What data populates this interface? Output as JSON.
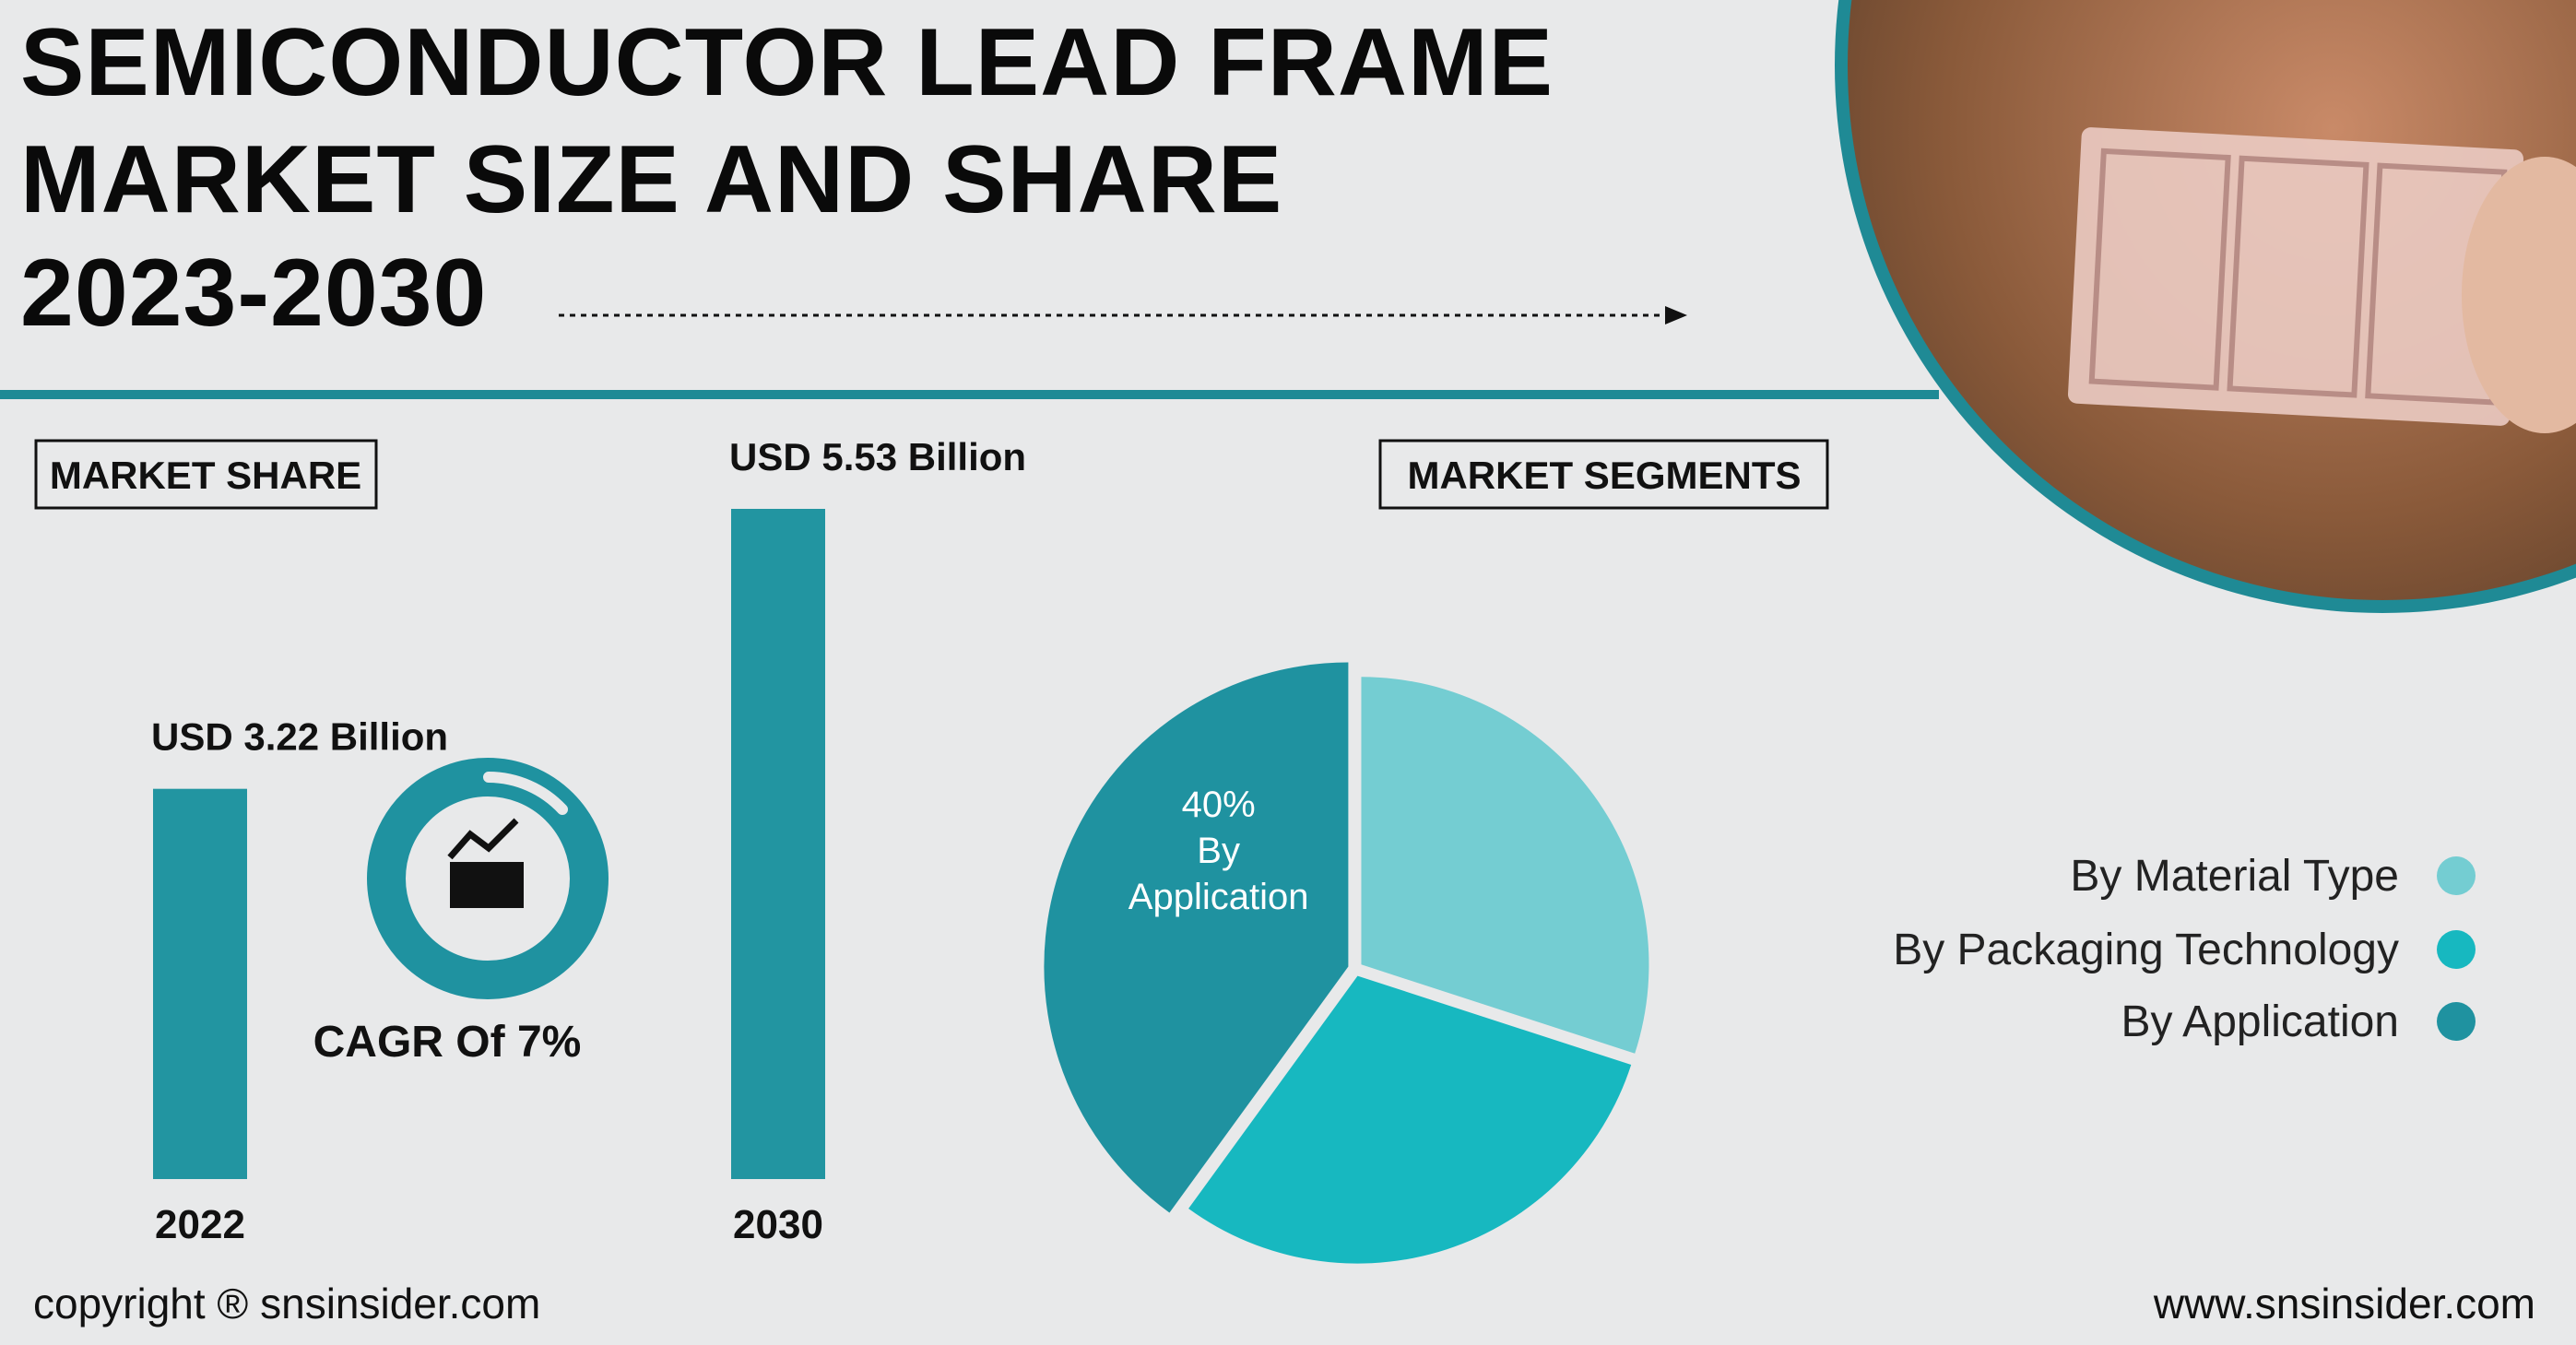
{
  "title_lines": [
    "SEMICONDUCTOR LEAD FRAME",
    "MARKET SIZE AND SHARE",
    "2023-2030"
  ],
  "badges": {
    "market_share": "MARKET SHARE",
    "market_segments": "MARKET SEGMENTS"
  },
  "cagr": "CAGR Of 7%",
  "chart_data": [
    {
      "type": "bar",
      "categories": [
        "2022",
        "2030"
      ],
      "values": [
        3.22,
        5.53
      ],
      "value_labels": [
        "USD 3.22 Billion",
        "USD 5.53 Billion"
      ],
      "color": "#2295a1"
    },
    {
      "type": "pie",
      "categories": [
        "By Material Type",
        "By Packaging Technology",
        "By Application"
      ],
      "values": [
        30,
        30,
        40
      ],
      "value_labels": [
        null,
        null,
        "40%"
      ],
      "colors": [
        "#74cdd2",
        "#17b8c0",
        "#1f92a0"
      ],
      "legend": "right"
    }
  ],
  "footer": {
    "copyright": "copyright ® snsinsider.com",
    "website": "www.snsinsider.com"
  }
}
